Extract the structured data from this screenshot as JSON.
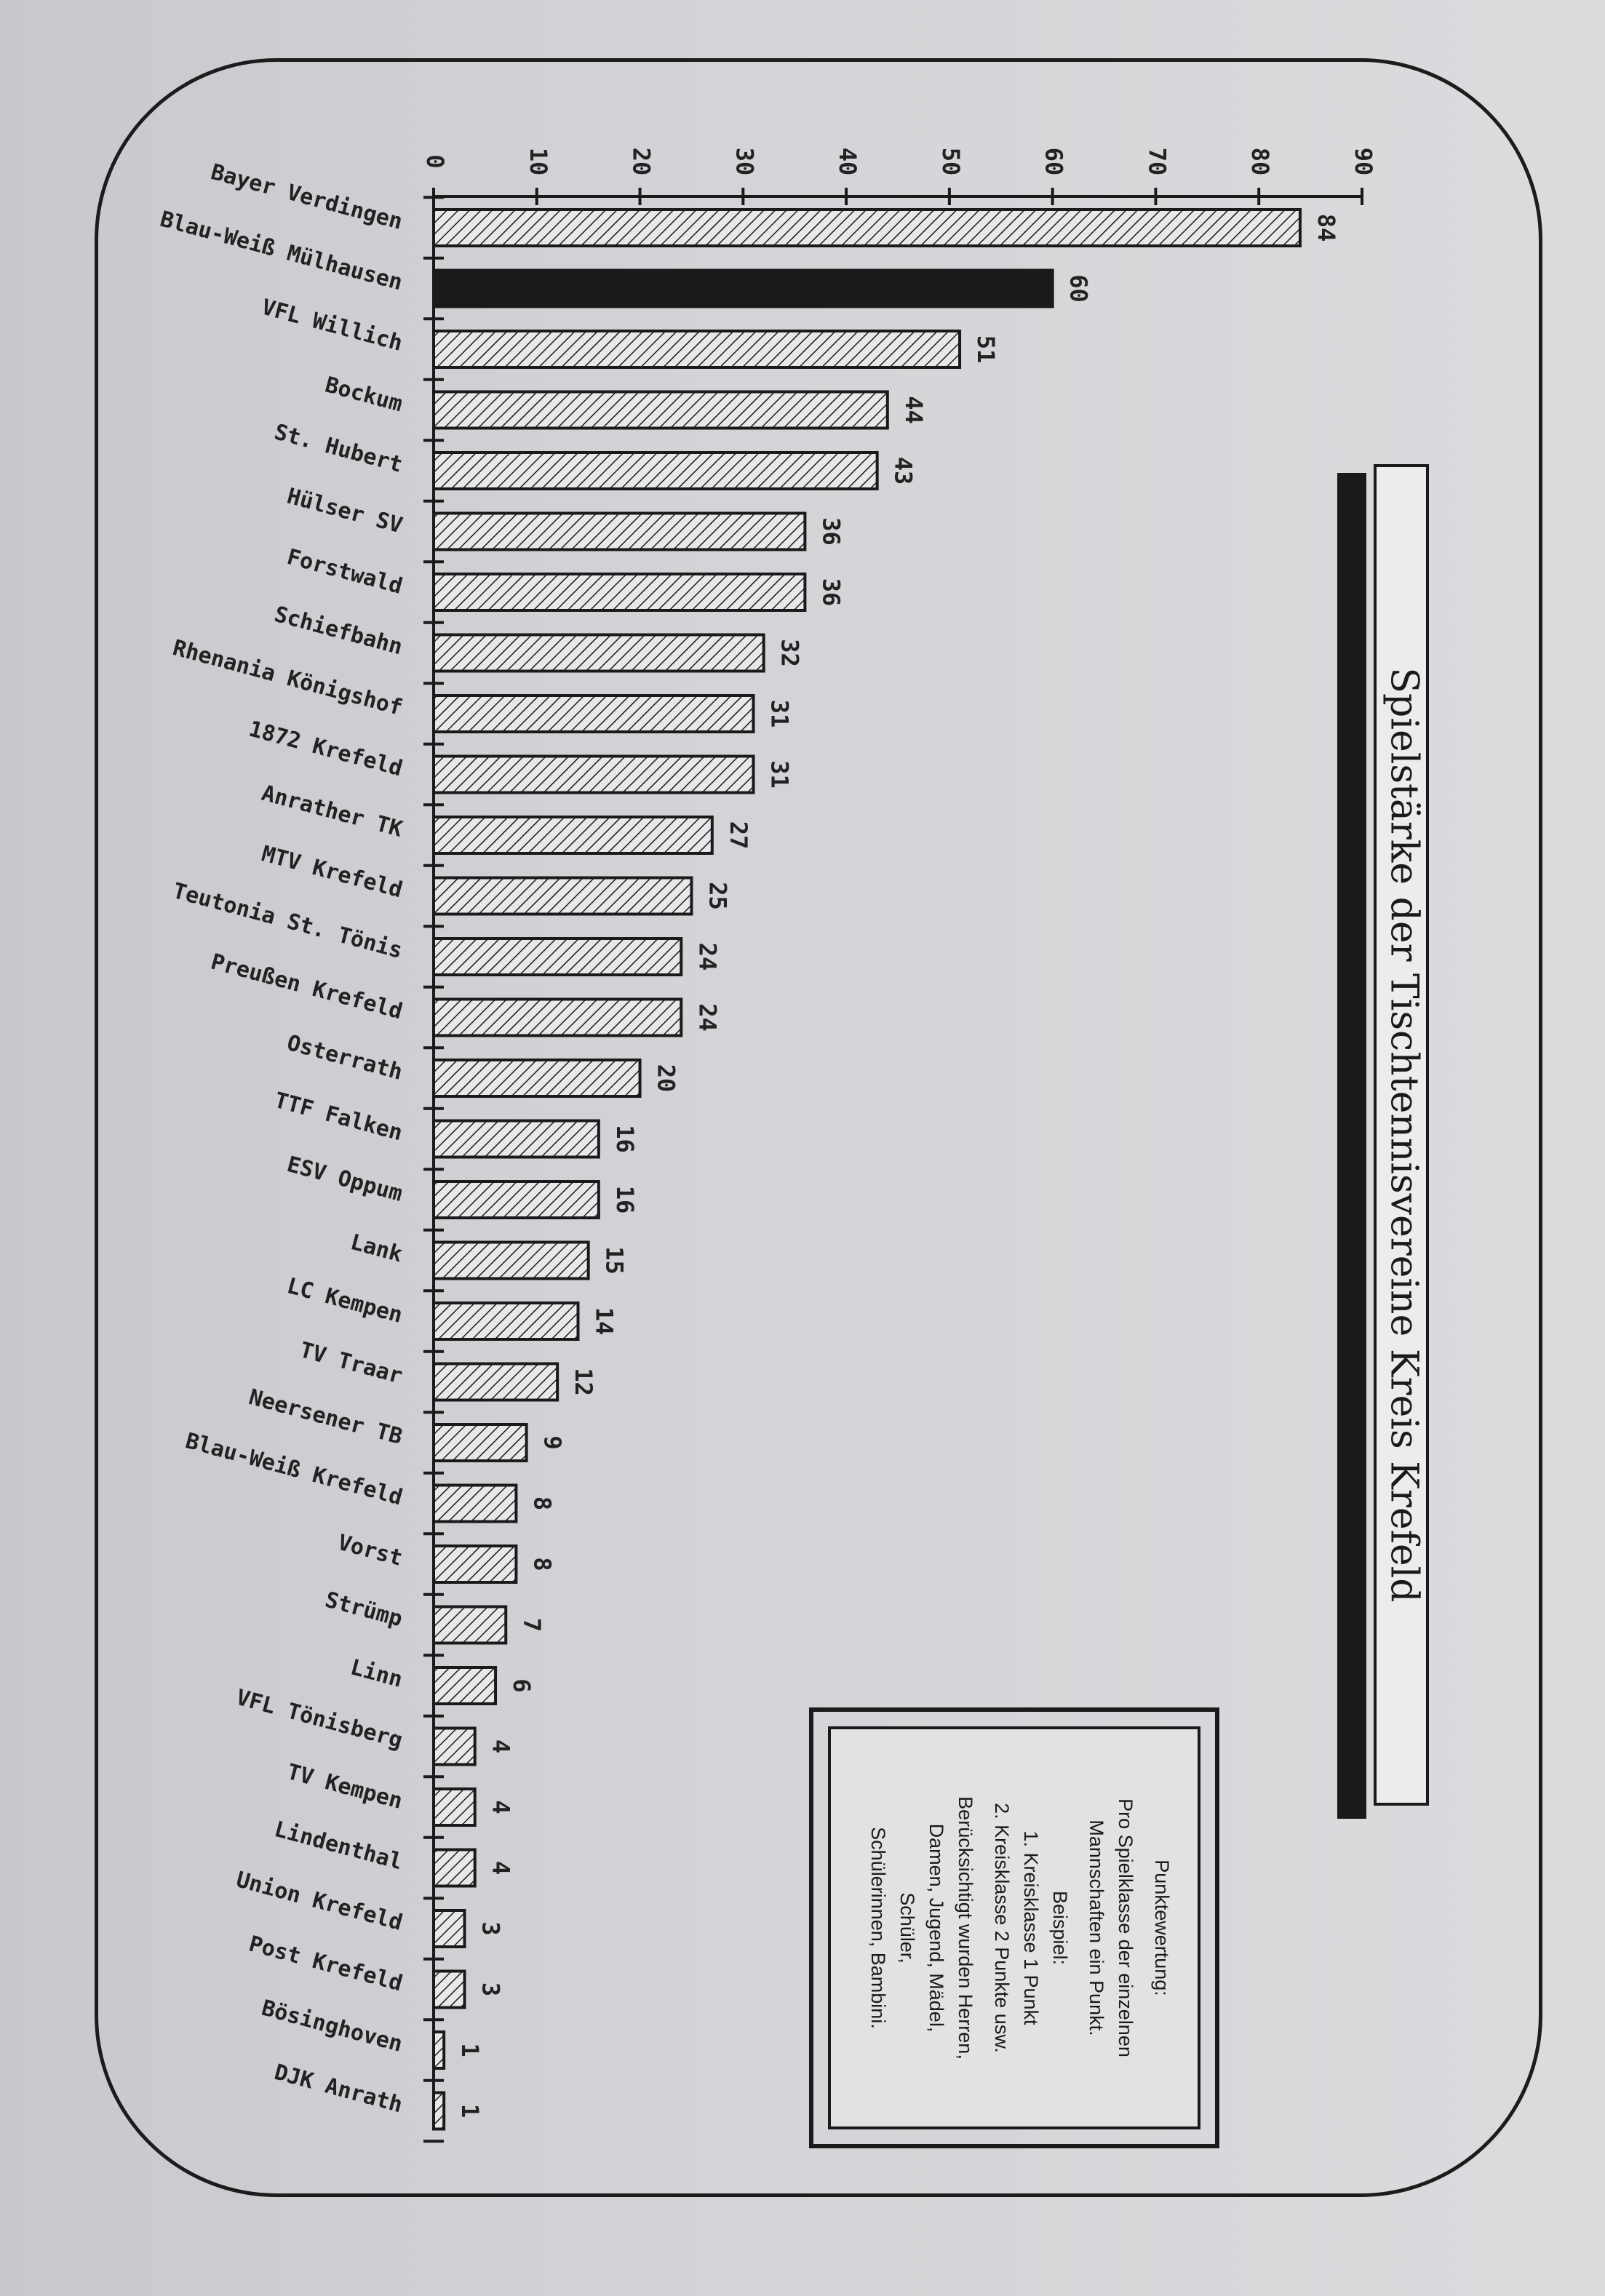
{
  "chart_data": {
    "type": "bar",
    "orientation": "horizontal",
    "title": "Spielstärke der Tischtennisvereine Kreis Krefeld",
    "categories": [
      "Bayer Verdingen",
      "Blau-Weiß Mülhausen",
      "VFL Willich",
      "Bockum",
      "St. Hubert",
      "Hülser SV",
      "Forstwald",
      "Schiefbahn",
      "Rhenania Königshof",
      "1872 Krefeld",
      "Anrather TK",
      "MTV Krefeld",
      "Teutonia St. Tönis",
      "Preußen Krefeld",
      "Osterrath",
      "TTF Falken",
      "ESV Oppum",
      "Lank",
      "LC Kempen",
      "TV Traar",
      "Neersener TB",
      "Blau-Weiß Krefeld",
      "Vorst",
      "Strümp",
      "Linn",
      "VFL Tönisberg",
      "TV Kempen",
      "Lindenthal",
      "Union Krefeld",
      "Post Krefeld",
      "Bösinghoven",
      "DJK Anrath"
    ],
    "values": [
      84,
      60,
      51,
      44,
      43,
      36,
      36,
      32,
      31,
      31,
      27,
      25,
      24,
      24,
      20,
      16,
      16,
      15,
      14,
      12,
      9,
      8,
      8,
      7,
      6,
      4,
      4,
      4,
      3,
      3,
      1,
      1
    ],
    "value_labels": [
      "84",
      "60",
      "51",
      "44",
      "43",
      "36",
      "36",
      "32",
      "31",
      "31",
      "27",
      "25",
      "24",
      "24",
      "20",
      "16",
      "16",
      "15",
      "14",
      "12",
      "9",
      "8",
      "8",
      "7",
      "6",
      "4",
      "4",
      "4",
      "3",
      "3",
      "1",
      "1"
    ],
    "highlighted_index": 1,
    "axis": {
      "ticks": [
        0,
        10,
        20,
        30,
        40,
        50,
        60,
        70,
        80,
        90
      ],
      "tick_labels": [
        "0",
        "10",
        "20",
        "30",
        "40",
        "50",
        "60",
        "70",
        "80",
        "90"
      ],
      "range": [
        0,
        90
      ]
    },
    "grid": false,
    "rotation": "90deg clockwise (page scanned rotated)"
  },
  "legend_box": {
    "lines": [
      "Punktewertung:",
      "Pro Spielklasse der einzelnen",
      "Mannschaften ein Punkt.",
      "Beispiel:",
      "1. Kreisklasse 1 Punkt",
      "2. Kreisklasse 2 Punkte usw.",
      "Berücksichtigt wurden Herren,",
      "Damen, Jugend, Mädel,",
      "Schüler,",
      "Schülerinnen, Bambini."
    ]
  },
  "colors": {
    "ink": "#1a1a1a",
    "highlight_bar": "#1a1a1a",
    "paper": "#d3d3d7"
  }
}
